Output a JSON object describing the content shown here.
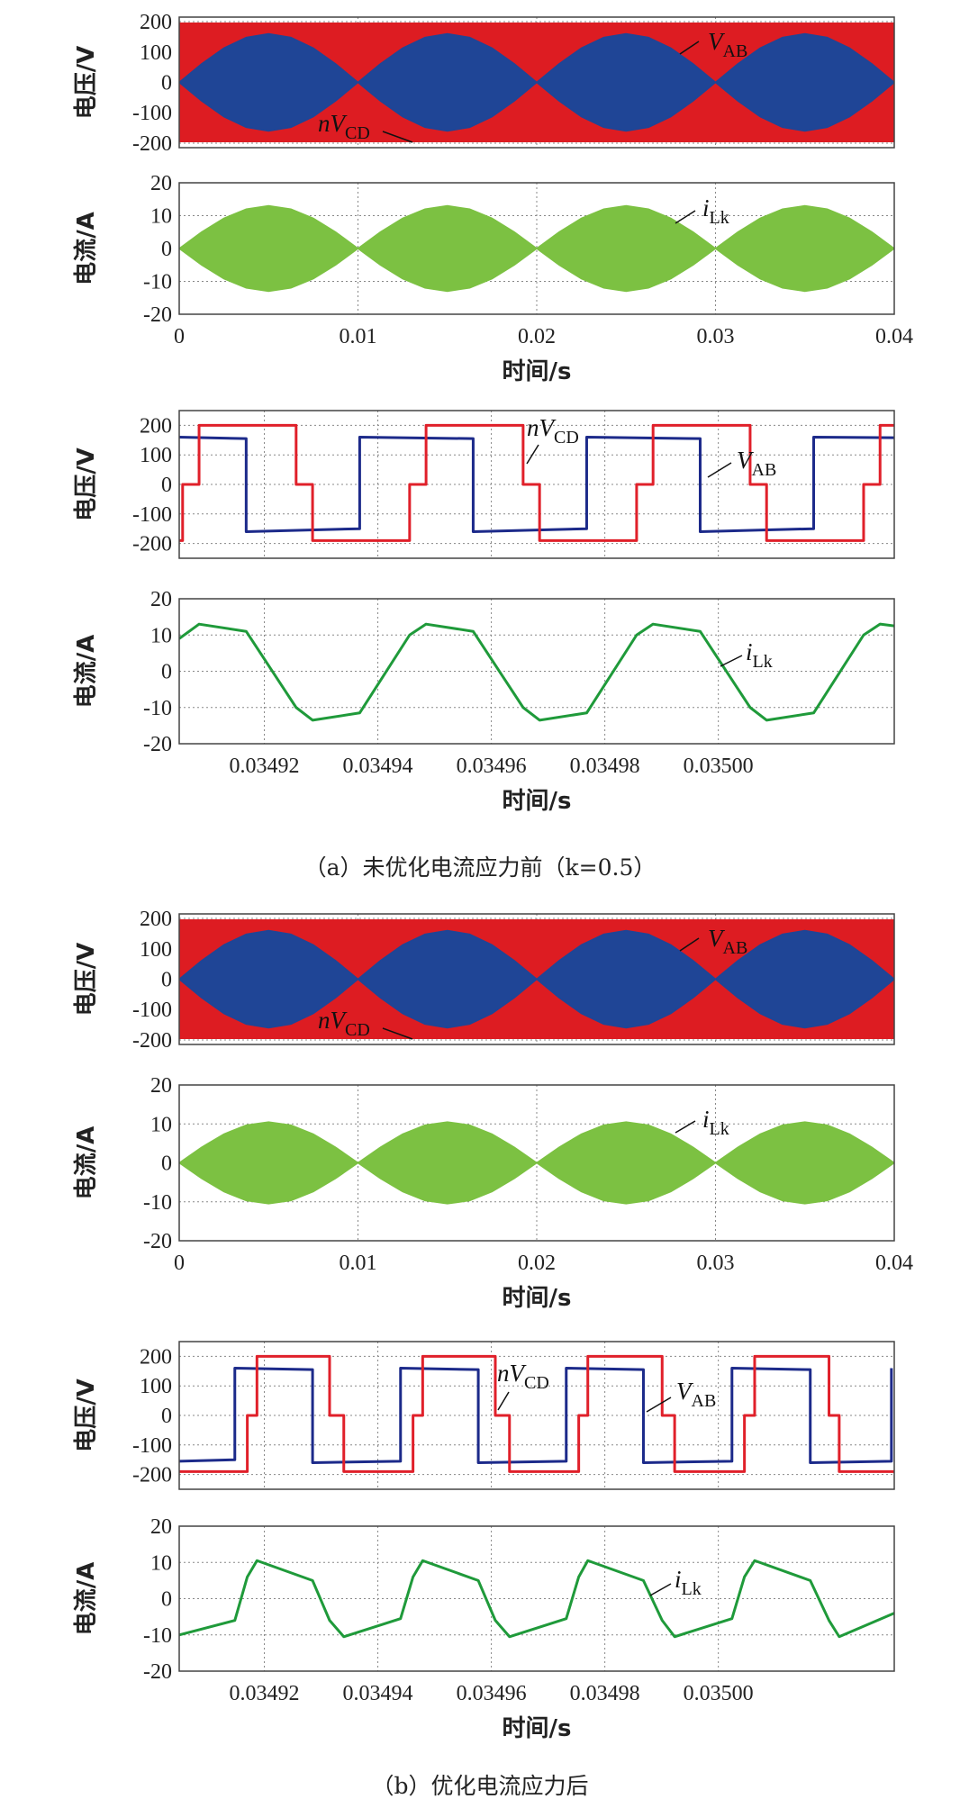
{
  "captions": [
    "（a）未优化电流应力前（k=0.5）",
    "（b）优化电流应力后"
  ],
  "chart_data": [
    {
      "type": "area",
      "y_label": "电压/V",
      "xlim": [
        0,
        0.04
      ],
      "ylim": [
        -215,
        215
      ],
      "xticks": [
        0,
        0.01,
        0.02,
        0.03,
        0.04
      ],
      "xtick_labels": false,
      "yticks": [
        -200,
        -100,
        0,
        100,
        200
      ],
      "grid": true,
      "series": [
        {
          "label_main": "nV",
          "label_sub": "CD",
          "color": "#dd1c22",
          "x": [
            0,
            0.04
          ],
          "values": [
            195,
            195
          ],
          "lower": [
            -195,
            -195
          ]
        },
        {
          "label_main": "V",
          "label_sub": "AB",
          "color": "#1f4596",
          "x": [
            0,
            0.00125,
            0.0025,
            0.00375,
            0.005,
            0.00625,
            0.0075,
            0.00875,
            0.01,
            0.01125,
            0.0125,
            0.01375,
            0.015,
            0.01625,
            0.0175,
            0.01875,
            0.02,
            0.02125,
            0.0225,
            0.02375,
            0.025,
            0.02625,
            0.0275,
            0.02875,
            0.03,
            0.03125,
            0.0325,
            0.03375,
            0.035,
            0.03625,
            0.0375,
            0.03875,
            0.04
          ],
          "values": [
            0,
            61,
            113,
            148,
            160,
            148,
            113,
            61,
            0,
            61,
            113,
            148,
            160,
            148,
            113,
            61,
            0,
            61,
            113,
            148,
            160,
            148,
            113,
            61,
            0,
            61,
            113,
            148,
            160,
            148,
            113,
            61,
            0
          ],
          "lower": [
            0,
            -61,
            -113,
            -148,
            -160,
            -148,
            -113,
            -61,
            0,
            -61,
            -113,
            -148,
            -160,
            -148,
            -113,
            -61,
            0,
            -61,
            -113,
            -148,
            -160,
            -148,
            -113,
            -61,
            0,
            -61,
            -113,
            -148,
            -160,
            -148,
            -113,
            -61,
            0
          ]
        }
      ]
    },
    {
      "type": "area",
      "y_label": "电流/A",
      "x_label": "时间/s",
      "xlim": [
        0,
        0.04
      ],
      "ylim": [
        -20,
        20
      ],
      "xticks": [
        0,
        0.01,
        0.02,
        0.03,
        0.04
      ],
      "yticks": [
        -20,
        -10,
        0,
        10,
        20
      ],
      "grid": true,
      "series": [
        {
          "label_main": "i",
          "label_sub": "Lk",
          "color": "#7cc142",
          "x": [
            0,
            0.00125,
            0.0025,
            0.00375,
            0.005,
            0.00625,
            0.0075,
            0.00875,
            0.01,
            0.01125,
            0.0125,
            0.01375,
            0.015,
            0.01625,
            0.0175,
            0.01875,
            0.02,
            0.02125,
            0.0225,
            0.02375,
            0.025,
            0.02625,
            0.0275,
            0.02875,
            0.03,
            0.03125,
            0.0325,
            0.03375,
            0.035,
            0.03625,
            0.0375,
            0.03875,
            0.04
          ],
          "values": [
            0,
            5,
            9.2,
            12,
            13,
            12,
            9.2,
            5,
            0,
            5,
            9.2,
            12,
            13,
            12,
            9.2,
            5,
            0,
            5,
            9.2,
            12,
            13,
            12,
            9.2,
            5,
            0,
            5,
            9.2,
            12,
            13,
            12,
            9.2,
            5,
            0
          ],
          "lower": [
            0,
            -5,
            -9.2,
            -12,
            -13,
            -12,
            -9.2,
            -5,
            0,
            -5,
            -9.2,
            -12,
            -13,
            -12,
            -9.2,
            -5,
            0,
            -5,
            -9.2,
            -12,
            -13,
            -12,
            -9.2,
            -5,
            0,
            -5,
            -9.2,
            -12,
            -13,
            -12,
            -9.2,
            -5,
            0
          ]
        }
      ]
    },
    {
      "type": "line",
      "y_label": "电压/V",
      "xlim": [
        0.034905,
        0.035031
      ],
      "ylim": [
        -250,
        250
      ],
      "xticks": [
        0.03492,
        0.03494,
        0.03496,
        0.03498,
        {
          "value": 0.035,
          "label": "0.03500"
        }
      ],
      "xtick_labels": false,
      "yticks": [
        -200,
        -100,
        0,
        100,
        200
      ],
      "grid": true,
      "series": [
        {
          "label_main": "V",
          "label_sub": "AB",
          "color": "#1c2a8a",
          "x": [
            0.034905,
            0.0349168,
            0.0349168,
            0.0349368,
            0.0349368,
            0.0349568,
            0.0349568,
            0.0349768,
            0.0349768,
            0.0349968,
            0.0349968,
            0.0350168,
            0.0350168,
            0.035031
          ],
          "values": [
            160,
            155,
            -160,
            -150,
            160,
            155,
            -160,
            -150,
            160,
            155,
            -160,
            -150,
            160,
            158
          ]
        },
        {
          "label_main": "nV",
          "label_sub": "CD",
          "color": "#e0202a",
          "x": [
            0.034905,
            0.0349056,
            0.0349056,
            0.0349085,
            0.0349085,
            0.0349256,
            0.0349256,
            0.0349285,
            0.0349285,
            0.0349456,
            0.0349456,
            0.0349485,
            0.0349485,
            0.0349656,
            0.0349656,
            0.0349685,
            0.0349685,
            0.0349856,
            0.0349856,
            0.0349885,
            0.0349885,
            0.0350056,
            0.0350056,
            0.0350085,
            0.0350085,
            0.0350256,
            0.0350256,
            0.0350285,
            0.0350285,
            0.035031
          ],
          "values": [
            -190,
            -190,
            0,
            0,
            200,
            200,
            0,
            0,
            -190,
            -190,
            0,
            0,
            200,
            200,
            0,
            0,
            -190,
            -190,
            0,
            0,
            200,
            200,
            0,
            0,
            -190,
            -190,
            0,
            0,
            200,
            200
          ]
        }
      ]
    },
    {
      "type": "line",
      "y_label": "电流/A",
      "x_label": "时间/s",
      "xlim": [
        0.034905,
        0.035031
      ],
      "ylim": [
        -20,
        20
      ],
      "xticks": [
        0.03492,
        0.03494,
        0.03496,
        0.03498,
        {
          "value": 0.035,
          "label": "0.03500"
        }
      ],
      "yticks": [
        -20,
        -10,
        0,
        10,
        20
      ],
      "grid": true,
      "series": [
        {
          "label_main": "i",
          "label_sub": "Lk",
          "color": "#1f9a3a",
          "x": [
            0.034905,
            0.0349085,
            0.0349168,
            0.0349256,
            0.0349285,
            0.0349368,
            0.0349456,
            0.0349485,
            0.0349568,
            0.0349656,
            0.0349685,
            0.0349768,
            0.0349856,
            0.0349885,
            0.0349968,
            0.0350056,
            0.0350085,
            0.0350168,
            0.0350256,
            0.0350285,
            0.035031
          ],
          "values": [
            9,
            13,
            11,
            -10,
            -13.5,
            -11.5,
            10,
            13,
            11,
            -10,
            -13.5,
            -11.5,
            10,
            13,
            11,
            -10,
            -13.5,
            -11.5,
            10,
            13,
            12.5
          ]
        }
      ]
    },
    {
      "type": "area",
      "y_label": "电压/V",
      "xlim": [
        0,
        0.04
      ],
      "ylim": [
        -215,
        215
      ],
      "xticks": [
        0,
        0.01,
        0.02,
        0.03,
        0.04
      ],
      "xtick_labels": false,
      "yticks": [
        -200,
        -100,
        0,
        100,
        200
      ],
      "grid": true,
      "series": [
        {
          "label_main": "nV",
          "label_sub": "CD",
          "color": "#dd1c22",
          "x": [
            0,
            0.04
          ],
          "values": [
            195,
            195
          ],
          "lower": [
            -195,
            -195
          ]
        },
        {
          "label_main": "V",
          "label_sub": "AB",
          "color": "#1f4596",
          "x": [
            0,
            0.00125,
            0.0025,
            0.00375,
            0.005,
            0.00625,
            0.0075,
            0.00875,
            0.01,
            0.01125,
            0.0125,
            0.01375,
            0.015,
            0.01625,
            0.0175,
            0.01875,
            0.02,
            0.02125,
            0.0225,
            0.02375,
            0.025,
            0.02625,
            0.0275,
            0.02875,
            0.03,
            0.03125,
            0.0325,
            0.03375,
            0.035,
            0.03625,
            0.0375,
            0.03875,
            0.04
          ],
          "values": [
            0,
            61,
            113,
            148,
            160,
            148,
            113,
            61,
            0,
            61,
            113,
            148,
            160,
            148,
            113,
            61,
            0,
            61,
            113,
            148,
            160,
            148,
            113,
            61,
            0,
            61,
            113,
            148,
            160,
            148,
            113,
            61,
            0
          ],
          "lower": [
            0,
            -61,
            -113,
            -148,
            -160,
            -148,
            -113,
            -61,
            0,
            -61,
            -113,
            -148,
            -160,
            -148,
            -113,
            -61,
            0,
            -61,
            -113,
            -148,
            -160,
            -148,
            -113,
            -61,
            0,
            -61,
            -113,
            -148,
            -160,
            -148,
            -113,
            -61,
            0
          ]
        }
      ]
    },
    {
      "type": "area",
      "y_label": "电流/A",
      "x_label": "时间/s",
      "xlim": [
        0,
        0.04
      ],
      "ylim": [
        -20,
        20
      ],
      "xticks": [
        0,
        0.01,
        0.02,
        0.03,
        0.04
      ],
      "yticks": [
        -20,
        -10,
        0,
        10,
        20
      ],
      "grid": true,
      "series": [
        {
          "label_main": "i",
          "label_sub": "Lk",
          "color": "#7cc142",
          "x": [
            0,
            0.00125,
            0.0025,
            0.00375,
            0.005,
            0.00625,
            0.0075,
            0.00875,
            0.01,
            0.01125,
            0.0125,
            0.01375,
            0.015,
            0.01625,
            0.0175,
            0.01875,
            0.02,
            0.02125,
            0.0225,
            0.02375,
            0.025,
            0.02625,
            0.0275,
            0.02875,
            0.03,
            0.03125,
            0.0325,
            0.03375,
            0.035,
            0.03625,
            0.0375,
            0.03875,
            0.04
          ],
          "values": [
            0,
            4,
            7.4,
            9.7,
            10.5,
            9.7,
            7.4,
            4,
            0,
            4,
            7.4,
            9.7,
            10.5,
            9.7,
            7.4,
            4,
            0,
            4,
            7.4,
            9.7,
            10.5,
            9.7,
            7.4,
            4,
            0,
            4,
            7.4,
            9.7,
            10.5,
            9.7,
            7.4,
            4,
            0
          ],
          "lower": [
            0,
            -4,
            -7.4,
            -9.7,
            -10.5,
            -9.7,
            -7.4,
            -4,
            0,
            -4,
            -7.4,
            -9.7,
            -10.5,
            -9.7,
            -7.4,
            -4,
            0,
            -4,
            -7.4,
            -9.7,
            -10.5,
            -9.7,
            -7.4,
            -4,
            0,
            -4,
            -7.4,
            -9.7,
            -10.5,
            -9.7,
            -7.4,
            -4,
            0
          ]
        }
      ]
    },
    {
      "type": "line",
      "y_label": "电压/V",
      "xlim": [
        0.034905,
        0.035031
      ],
      "ylim": [
        -250,
        250
      ],
      "xticks": [
        0.03492,
        0.03494,
        0.03496,
        0.03498,
        {
          "value": 0.035,
          "label": "0.03500"
        }
      ],
      "xtick_labels": false,
      "yticks": [
        -200,
        -100,
        0,
        100,
        200
      ],
      "grid": true,
      "series": [
        {
          "label_main": "V",
          "label_sub": "AB",
          "color": "#1c2a8a",
          "x": [
            0.034905,
            0.0349148,
            0.0349148,
            0.0349285,
            0.0349285,
            0.034944,
            0.034944,
            0.0349577,
            0.0349577,
            0.0349732,
            0.0349732,
            0.0349868,
            0.0349868,
            0.0350024,
            0.0350024,
            0.0350162,
            0.0350162,
            0.0350305,
            0.0350305
          ],
          "values": [
            -155,
            -150,
            160,
            155,
            -160,
            -155,
            160,
            155,
            -160,
            -155,
            160,
            155,
            -160,
            -155,
            160,
            155,
            -160,
            -155,
            160
          ]
        },
        {
          "label_main": "nV",
          "label_sub": "CD",
          "color": "#e0202a",
          "x": [
            0.034905,
            0.034917,
            0.034917,
            0.0349187,
            0.0349187,
            0.0349315,
            0.0349315,
            0.034934,
            0.034934,
            0.0349462,
            0.0349462,
            0.0349479,
            0.0349479,
            0.0349607,
            0.0349607,
            0.0349632,
            0.0349632,
            0.0349754,
            0.0349754,
            0.034977,
            0.034977,
            0.0349901,
            0.0349901,
            0.0349923,
            0.0349923,
            0.0350046,
            0.0350046,
            0.0350064,
            0.0350064,
            0.0350195,
            0.0350195,
            0.0350213,
            0.0350213,
            0.035031
          ],
          "values": [
            -190,
            -190,
            0,
            0,
            200,
            200,
            0,
            0,
            -190,
            -190,
            0,
            0,
            200,
            200,
            0,
            0,
            -190,
            -190,
            0,
            0,
            200,
            200,
            0,
            0,
            -190,
            -190,
            0,
            0,
            200,
            200,
            0,
            0,
            -190,
            -190
          ]
        }
      ]
    },
    {
      "type": "line",
      "y_label": "电流/A",
      "x_label": "时间/s",
      "xlim": [
        0.034905,
        0.035031
      ],
      "ylim": [
        -20,
        20
      ],
      "xticks": [
        0.03492,
        0.03494,
        0.03496,
        0.03498,
        {
          "value": 0.035,
          "label": "0.03500"
        }
      ],
      "yticks": [
        -20,
        -10,
        0,
        10,
        20
      ],
      "grid": true,
      "series": [
        {
          "label_main": "i",
          "label_sub": "Lk",
          "color": "#1f9a3a",
          "x": [
            0.034905,
            0.0349148,
            0.034917,
            0.0349187,
            0.0349285,
            0.0349315,
            0.034934,
            0.034944,
            0.0349462,
            0.0349479,
            0.0349577,
            0.0349607,
            0.0349632,
            0.0349732,
            0.0349754,
            0.034977,
            0.0349868,
            0.0349901,
            0.0349923,
            0.0350024,
            0.0350046,
            0.0350064,
            0.0350162,
            0.0350195,
            0.0350213,
            0.035031
          ],
          "values": [
            -10,
            -6,
            6,
            10.5,
            5,
            -6,
            -10.5,
            -5.5,
            6,
            10.5,
            5,
            -6,
            -10.5,
            -5.5,
            6,
            10.5,
            5,
            -6,
            -10.5,
            -5.5,
            6,
            10.5,
            5,
            -6,
            -10.5,
            -4
          ]
        }
      ]
    }
  ]
}
